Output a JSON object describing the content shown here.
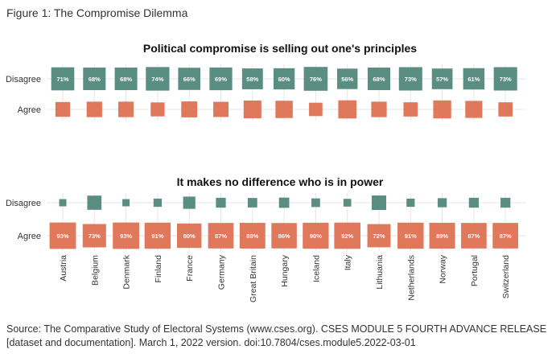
{
  "figure_label": "Figure 1: The Compromise Dilemma",
  "source": "Source: The Comparative Study of Electoral Systems (www.cses.org). CSES MODULE 5 FOURTH ADVANCE RELEASE [dataset and documentation]. March 1, 2022 version. doi:10.7804/cses.module5.2022-03-01",
  "colors": {
    "disagree": "#5b8e83",
    "agree": "#e0785c",
    "grid": "#e6e6e6",
    "label_on_square": "#ffffff"
  },
  "chart_data": [
    {
      "type": "heatmap",
      "title": "Political compromise is selling out one's principles",
      "categories": [
        "Austria",
        "Belgium",
        "Denmark",
        "Finland",
        "France",
        "Germany",
        "Great Britain",
        "Hungary",
        "Iceland",
        "Italy",
        "Lithuania",
        "Netherlands",
        "Norway",
        "Portugal",
        "Switzerland"
      ],
      "rows": [
        "Disagree",
        "Agree"
      ],
      "series": [
        {
          "name": "Disagree",
          "values": [
            71,
            68,
            68,
            74,
            66,
            69,
            58,
            60,
            76,
            56,
            68,
            73,
            57,
            61,
            73
          ],
          "labels": [
            "71%",
            "68%",
            "68%",
            "74%",
            "66%",
            "69%",
            "58%",
            "60%",
            "76%",
            "56%",
            "68%",
            "73%",
            "57%",
            "61%",
            "73%"
          ]
        },
        {
          "name": "Agree",
          "values": [
            29,
            32,
            32,
            26,
            34,
            31,
            42,
            40,
            24,
            44,
            32,
            27,
            43,
            39,
            27
          ]
        }
      ],
      "grid": true
    },
    {
      "type": "heatmap",
      "title": "It makes no difference who is in power",
      "categories": [
        "Austria",
        "Belgium",
        "Denmark",
        "Finland",
        "France",
        "Germany",
        "Great Britain",
        "Hungary",
        "Iceland",
        "Italy",
        "Lithuania",
        "Netherlands",
        "Norway",
        "Portugal",
        "Switzerland"
      ],
      "rows": [
        "Disagree",
        "Agree"
      ],
      "series": [
        {
          "name": "Disagree",
          "values": [
            7,
            27,
            7,
            9,
            20,
            13,
            12,
            14,
            10,
            8,
            28,
            9,
            11,
            13,
            13
          ]
        },
        {
          "name": "Agree",
          "values": [
            93,
            73,
            93,
            91,
            80,
            87,
            88,
            86,
            90,
            92,
            72,
            91,
            89,
            87,
            87
          ],
          "labels": [
            "93%",
            "73%",
            "93%",
            "91%",
            "80%",
            "87%",
            "88%",
            "86%",
            "90%",
            "92%",
            "72%",
            "91%",
            "89%",
            "87%",
            "87%"
          ]
        }
      ],
      "grid": true
    }
  ]
}
